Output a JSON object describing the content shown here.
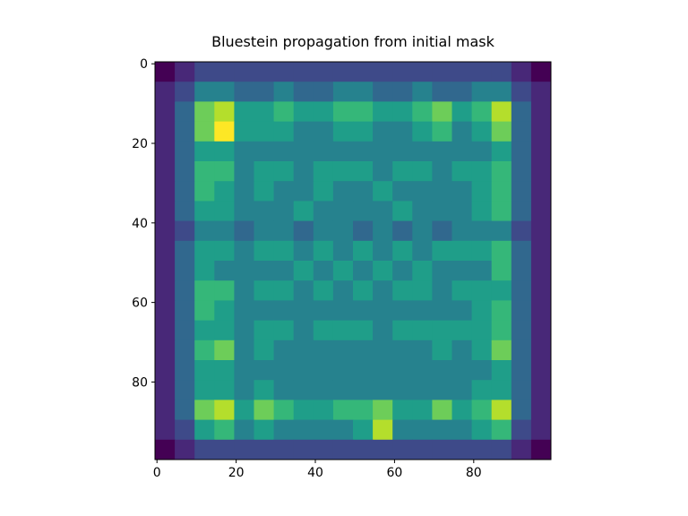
{
  "chart_data": {
    "type": "heatmap",
    "title": "Bluestein propagation from initial mask",
    "colormap": "viridis",
    "xlim": [
      -0.5,
      99.5
    ],
    "ylim": [
      99.5,
      -0.5
    ],
    "xticks": [
      0,
      20,
      40,
      60,
      80
    ],
    "yticks": [
      0,
      20,
      40,
      60,
      80
    ],
    "values": [
      [
        0.1,
        0.2,
        0.3,
        0.3,
        0.3,
        0.3,
        0.3,
        0.3,
        0.3,
        0.3,
        0.3,
        0.3,
        0.3,
        0.3,
        0.3,
        0.3,
        0.3,
        0.3,
        0.2,
        0.1
      ],
      [
        0.2,
        0.3,
        0.5,
        0.5,
        0.4,
        0.4,
        0.5,
        0.4,
        0.4,
        0.5,
        0.5,
        0.4,
        0.4,
        0.5,
        0.4,
        0.4,
        0.5,
        0.5,
        0.3,
        0.2
      ],
      [
        0.2,
        0.4,
        0.8,
        0.9,
        0.6,
        0.6,
        0.7,
        0.6,
        0.6,
        0.7,
        0.7,
        0.6,
        0.6,
        0.7,
        0.8,
        0.6,
        0.7,
        0.9,
        0.4,
        0.2
      ],
      [
        0.2,
        0.4,
        0.8,
        1.0,
        0.6,
        0.6,
        0.6,
        0.5,
        0.5,
        0.6,
        0.6,
        0.5,
        0.5,
        0.6,
        0.7,
        0.5,
        0.6,
        0.8,
        0.4,
        0.2
      ],
      [
        0.2,
        0.4,
        0.6,
        0.6,
        0.5,
        0.5,
        0.5,
        0.5,
        0.5,
        0.5,
        0.5,
        0.5,
        0.5,
        0.5,
        0.5,
        0.5,
        0.5,
        0.6,
        0.4,
        0.2
      ],
      [
        0.2,
        0.4,
        0.7,
        0.7,
        0.5,
        0.6,
        0.6,
        0.5,
        0.6,
        0.6,
        0.6,
        0.5,
        0.6,
        0.6,
        0.5,
        0.6,
        0.6,
        0.7,
        0.4,
        0.2
      ],
      [
        0.2,
        0.4,
        0.7,
        0.6,
        0.5,
        0.6,
        0.5,
        0.5,
        0.6,
        0.5,
        0.5,
        0.6,
        0.5,
        0.5,
        0.5,
        0.5,
        0.6,
        0.7,
        0.4,
        0.2
      ],
      [
        0.2,
        0.4,
        0.6,
        0.6,
        0.5,
        0.5,
        0.5,
        0.6,
        0.5,
        0.5,
        0.5,
        0.5,
        0.6,
        0.5,
        0.5,
        0.5,
        0.6,
        0.7,
        0.4,
        0.2
      ],
      [
        0.2,
        0.3,
        0.5,
        0.5,
        0.4,
        0.5,
        0.5,
        0.4,
        0.5,
        0.5,
        0.4,
        0.5,
        0.4,
        0.5,
        0.4,
        0.5,
        0.5,
        0.5,
        0.3,
        0.2
      ],
      [
        0.2,
        0.4,
        0.6,
        0.6,
        0.5,
        0.6,
        0.6,
        0.5,
        0.6,
        0.5,
        0.6,
        0.5,
        0.6,
        0.5,
        0.6,
        0.6,
        0.6,
        0.7,
        0.4,
        0.2
      ],
      [
        0.2,
        0.4,
        0.6,
        0.5,
        0.5,
        0.5,
        0.5,
        0.6,
        0.5,
        0.6,
        0.5,
        0.6,
        0.5,
        0.6,
        0.5,
        0.5,
        0.5,
        0.7,
        0.4,
        0.2
      ],
      [
        0.2,
        0.4,
        0.7,
        0.7,
        0.5,
        0.6,
        0.6,
        0.5,
        0.6,
        0.5,
        0.6,
        0.5,
        0.6,
        0.6,
        0.5,
        0.6,
        0.6,
        0.6,
        0.4,
        0.2
      ],
      [
        0.2,
        0.4,
        0.7,
        0.6,
        0.5,
        0.5,
        0.5,
        0.5,
        0.5,
        0.5,
        0.5,
        0.5,
        0.5,
        0.5,
        0.5,
        0.5,
        0.6,
        0.7,
        0.4,
        0.2
      ],
      [
        0.2,
        0.4,
        0.6,
        0.6,
        0.5,
        0.6,
        0.6,
        0.5,
        0.6,
        0.6,
        0.6,
        0.5,
        0.6,
        0.6,
        0.6,
        0.6,
        0.6,
        0.7,
        0.4,
        0.2
      ],
      [
        0.2,
        0.4,
        0.7,
        0.8,
        0.5,
        0.6,
        0.5,
        0.5,
        0.5,
        0.5,
        0.5,
        0.5,
        0.5,
        0.5,
        0.6,
        0.5,
        0.6,
        0.8,
        0.4,
        0.2
      ],
      [
        0.2,
        0.4,
        0.6,
        0.6,
        0.5,
        0.5,
        0.5,
        0.5,
        0.5,
        0.5,
        0.5,
        0.5,
        0.5,
        0.5,
        0.5,
        0.5,
        0.5,
        0.6,
        0.4,
        0.2
      ],
      [
        0.2,
        0.4,
        0.6,
        0.6,
        0.5,
        0.6,
        0.5,
        0.5,
        0.5,
        0.5,
        0.5,
        0.5,
        0.5,
        0.5,
        0.5,
        0.5,
        0.6,
        0.6,
        0.4,
        0.2
      ],
      [
        0.2,
        0.4,
        0.8,
        0.9,
        0.6,
        0.8,
        0.7,
        0.6,
        0.6,
        0.7,
        0.7,
        0.8,
        0.6,
        0.6,
        0.8,
        0.6,
        0.7,
        0.9,
        0.4,
        0.2
      ],
      [
        0.2,
        0.3,
        0.6,
        0.7,
        0.5,
        0.6,
        0.5,
        0.5,
        0.5,
        0.5,
        0.6,
        0.9,
        0.5,
        0.5,
        0.5,
        0.5,
        0.6,
        0.7,
        0.3,
        0.2
      ],
      [
        0.1,
        0.2,
        0.3,
        0.3,
        0.3,
        0.3,
        0.3,
        0.3,
        0.3,
        0.3,
        0.3,
        0.3,
        0.3,
        0.3,
        0.3,
        0.3,
        0.3,
        0.3,
        0.2,
        0.1
      ]
    ]
  }
}
